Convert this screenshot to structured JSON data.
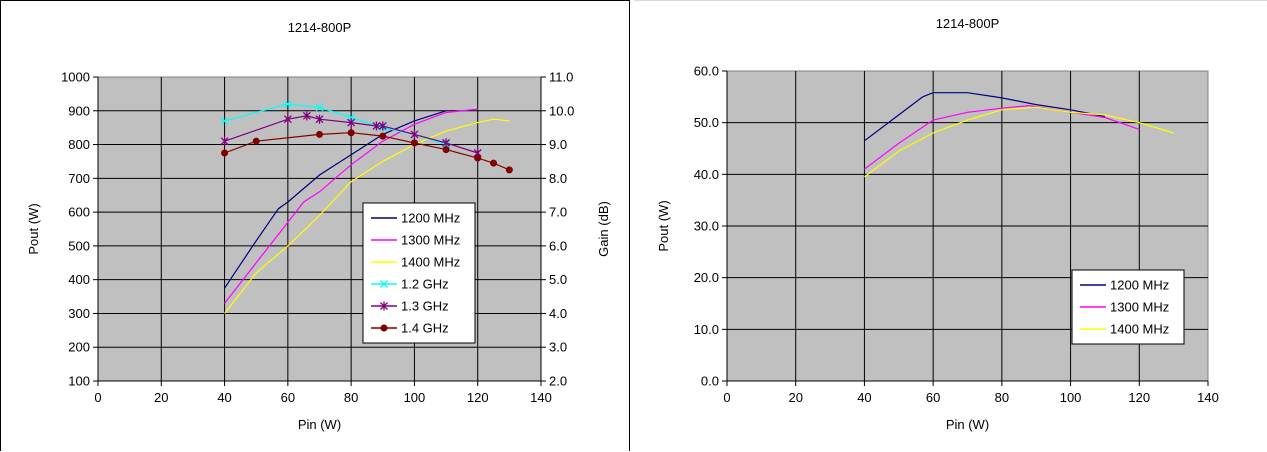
{
  "charts": [
    {
      "id": "left",
      "chart_data": {
        "type": "line",
        "title": "1214-800P",
        "xlabel": "Pin (W)",
        "ylabel": "Pout (W)",
        "y2label": "Gain (dB)",
        "xlim": [
          0,
          140
        ],
        "ylim": [
          100,
          1000
        ],
        "y2lim": [
          2.0,
          11.0
        ],
        "xticks": [
          "0",
          "20",
          "40",
          "60",
          "80",
          "100",
          "120",
          "140"
        ],
        "yticks": [
          "100",
          "200",
          "300",
          "400",
          "500",
          "600",
          "700",
          "800",
          "900",
          "1000"
        ],
        "y2ticks": [
          "2.0",
          "3.0",
          "4.0",
          "5.0",
          "6.0",
          "7.0",
          "8.0",
          "9.0",
          "10.0",
          "11.0"
        ],
        "grid": true,
        "legend_position": "lower-right",
        "series": [
          {
            "name": "1200 MHz",
            "axis": "left",
            "color": "#000080",
            "marker": "none",
            "x": [
              40,
              50,
              57,
              60,
              70,
              80,
              90,
              100,
              110
            ],
            "y": [
              375,
              515,
              610,
              630,
              710,
              770,
              830,
              870,
              900
            ]
          },
          {
            "name": "1300 MHz",
            "axis": "left",
            "color": "#ff00ff",
            "marker": "none",
            "x": [
              40,
              50,
              60,
              65,
              70,
              80,
              90,
              100,
              110,
              120
            ],
            "y": [
              330,
              450,
              570,
              630,
              660,
              740,
              810,
              860,
              895,
              905
            ]
          },
          {
            "name": "1400 MHz",
            "axis": "left",
            "color": "#ffff00",
            "marker": "none",
            "x": [
              40,
              50,
              60,
              70,
              80,
              90,
              100,
              110,
              120,
              125,
              130
            ],
            "y": [
              300,
              420,
              500,
              590,
              690,
              750,
              800,
              840,
              865,
              875,
              870
            ]
          },
          {
            "name": "1.2 GHz",
            "axis": "right",
            "color": "#00ffff",
            "marker": "x",
            "x": [
              40,
              60,
              70,
              80,
              90,
              100,
              110
            ],
            "y": [
              9.7,
              10.2,
              10.1,
              9.8,
              9.5,
              9.3,
              9.0
            ]
          },
          {
            "name": "1.3 GHz",
            "axis": "right",
            "color": "#800080",
            "marker": "star",
            "x": [
              40,
              60,
              66,
              70,
              80,
              88,
              90,
              100,
              110,
              120
            ],
            "y": [
              9.1,
              9.75,
              9.85,
              9.75,
              9.65,
              9.55,
              9.55,
              9.3,
              9.05,
              8.75
            ]
          },
          {
            "name": "1.4 GHz",
            "axis": "right",
            "color": "#800000",
            "marker": "circle",
            "x": [
              40,
              50,
              70,
              80,
              90,
              100,
              110,
              120,
              125,
              130
            ],
            "y": [
              8.75,
              9.1,
              9.3,
              9.35,
              9.25,
              9.05,
              8.85,
              8.6,
              8.45,
              8.25
            ]
          }
        ]
      }
    },
    {
      "id": "right",
      "chart_data": {
        "type": "line",
        "title": "1214-800P",
        "xlabel": "Pin (W)",
        "ylabel": "Pout (W)",
        "xlim": [
          0,
          140
        ],
        "ylim": [
          0,
          60
        ],
        "xticks": [
          "0",
          "20",
          "40",
          "60",
          "80",
          "100",
          "120",
          "140"
        ],
        "yticks": [
          "0.0",
          "10.0",
          "20.0",
          "30.0",
          "40.0",
          "50.0",
          "60.0"
        ],
        "grid": true,
        "legend_position": "lower-right",
        "series": [
          {
            "name": "1200 MHz",
            "color": "#000080",
            "marker": "none",
            "x": [
              40,
              50,
              57,
              60,
              70,
              80,
              90,
              100,
              110
            ],
            "y": [
              46.5,
              51.5,
              55,
              55.8,
              55.8,
              54.8,
              53.5,
              52.5,
              51.2
            ]
          },
          {
            "name": "1300 MHz",
            "color": "#ff00ff",
            "marker": "none",
            "x": [
              40,
              50,
              60,
              70,
              80,
              88,
              100,
              110,
              120
            ],
            "y": [
              41,
              46,
              50.5,
              52,
              52.8,
              53.3,
              52,
              51,
              48.7
            ]
          },
          {
            "name": "1400 MHz",
            "color": "#ffff00",
            "marker": "none",
            "x": [
              40,
              50,
              60,
              70,
              80,
              90,
              100,
              110,
              120,
              130
            ],
            "y": [
              39.5,
              44.5,
              48,
              50.5,
              52.5,
              53,
              52,
              51.5,
              50,
              48
            ]
          }
        ]
      }
    }
  ]
}
